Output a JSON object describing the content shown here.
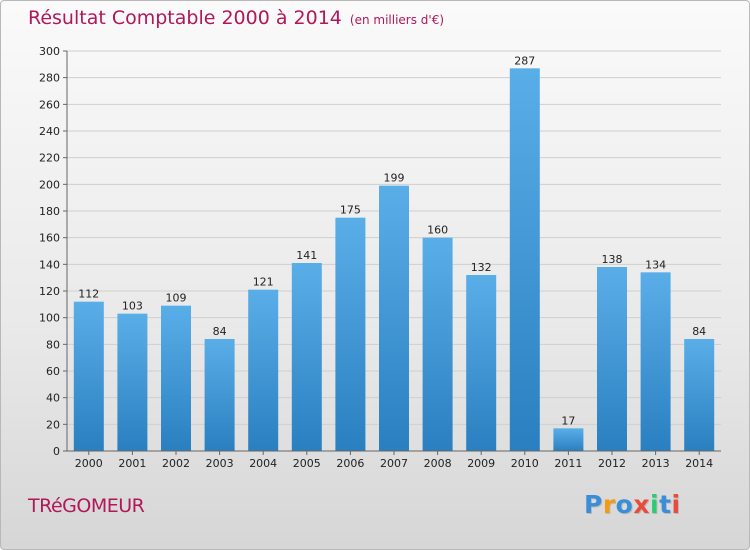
{
  "title": "Résultat Comptable 2000 à 2014",
  "subtitle": "(en milliers d'€)",
  "commune": "TRéGOMEUR",
  "logo": {
    "text": "Proxiti",
    "letters": [
      "P",
      "r",
      "o",
      "x",
      "i",
      "t",
      "i"
    ],
    "colors": [
      "#3a8ed8",
      "#f39c12",
      "#3a8ed8",
      "#e74c3c",
      "#2ecc71",
      "#3a8ed8",
      "#e74c3c"
    ]
  },
  "colors": {
    "bar_top": "#5aaee8",
    "bar_bottom": "#2a7fc0",
    "title": "#b0185a"
  },
  "chart_data": {
    "type": "bar",
    "categories": [
      "2000",
      "2001",
      "2002",
      "2003",
      "2004",
      "2005",
      "2006",
      "2007",
      "2008",
      "2009",
      "2010",
      "2011",
      "2012",
      "2013",
      "2014"
    ],
    "values": [
      112,
      103,
      109,
      84,
      121,
      141,
      175,
      199,
      160,
      132,
      287,
      17,
      138,
      134,
      84
    ],
    "value_labels": [
      "112",
      "103",
      "109",
      "84",
      "121",
      "141",
      "175",
      "199",
      "160",
      "132",
      "287",
      "17",
      "138",
      "134",
      "84"
    ],
    "yticks": [
      "0",
      "20",
      "40",
      "60",
      "80",
      "100",
      "120",
      "140",
      "160",
      "180",
      "200",
      "220",
      "240",
      "260",
      "280",
      "300"
    ],
    "ylim": [
      0,
      300
    ],
    "grid": true,
    "xlabel": "",
    "ylabel": ""
  }
}
